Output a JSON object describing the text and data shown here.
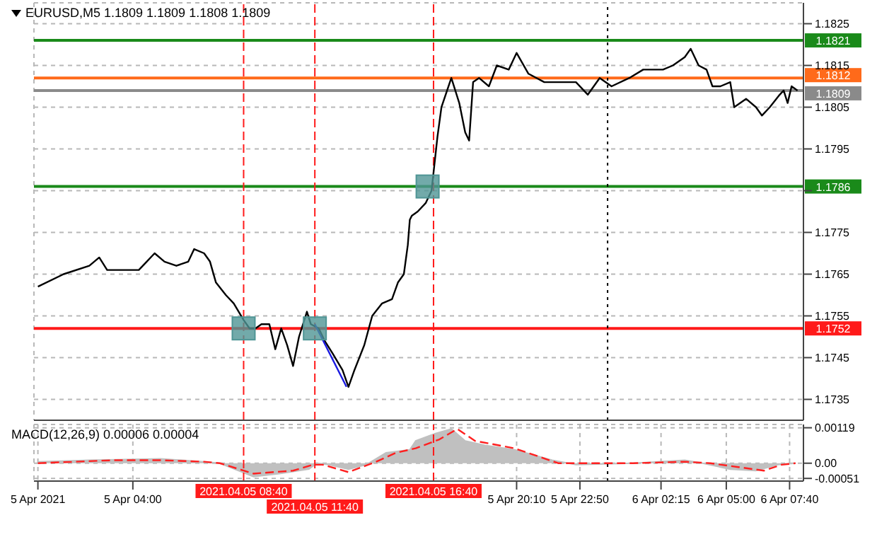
{
  "chart_data": [
    {
      "type": "line",
      "title": "EURUSD,M5  1.1809 1.1809 1.1808 1.1809",
      "xlim": [
        "2021-04-04T23:50",
        "2021-04-06T08:15"
      ],
      "ylim": [
        1.173,
        1.183
      ],
      "yticks": [
        1.1735,
        1.1745,
        1.1755,
        1.1765,
        1.1775,
        {
          "value": 1.1785,
          "label": null
        },
        1.1795,
        1.1805,
        1.1815,
        1.1825
      ],
      "xticks": [
        {
          "value": "2021-04-05T00:00",
          "label": null
        },
        {
          "value": "2021-04-05T04:00",
          "label": null
        },
        {
          "value": "2021-04-05T20:10",
          "label": null
        },
        {
          "value": "2021-04-05T22:50",
          "label": null
        },
        {
          "value": "2021-04-06T02:15",
          "label": null
        },
        {
          "value": "2021-04-06T05:00",
          "label": null
        },
        {
          "value": "2021-04-06T07:40",
          "label": null
        }
      ],
      "tick_labels": "y",
      "grid": true,
      "series": [
        {
          "color": "#000000",
          "x": [
            "2021-04-05T00:00",
            "2021-04-05T01:05",
            "2021-04-05T02:10",
            "2021-04-05T02:35",
            "2021-04-05T02:55",
            "2021-04-05T03:35",
            "2021-04-05T04:15",
            "2021-04-05T04:35",
            "2021-04-05T04:55",
            "2021-04-05T05:20",
            "2021-04-05T05:50",
            "2021-04-05T06:20",
            "2021-04-05T06:35",
            "2021-04-05T07:00",
            "2021-04-05T07:15",
            "2021-04-05T07:30",
            "2021-04-05T07:55",
            "2021-04-05T08:15",
            "2021-04-05T08:40",
            "2021-04-05T08:55",
            "2021-04-05T09:10",
            "2021-04-05T09:25",
            "2021-04-05T09:45",
            "2021-04-05T10:00",
            "2021-04-05T10:15",
            "2021-04-05T10:30",
            "2021-04-05T10:45",
            "2021-04-05T11:00",
            "2021-04-05T11:20",
            "2021-04-05T11:30",
            "2021-04-05T11:50",
            "2021-04-05T12:05",
            "2021-04-05T12:25",
            "2021-04-05T12:50",
            "2021-04-05T13:05",
            "2021-04-05T13:20",
            "2021-04-05T13:45",
            "2021-04-05T14:05",
            "2021-04-05T14:30",
            "2021-04-05T14:55",
            "2021-04-05T15:10",
            "2021-04-05T15:25",
            "2021-04-05T15:35",
            "2021-04-05T15:40",
            "2021-04-05T15:45",
            "2021-04-05T16:00",
            "2021-04-05T16:20",
            "2021-04-05T16:35",
            "2021-04-05T16:50",
            "2021-04-05T17:00",
            "2021-04-05T17:25",
            "2021-04-05T17:45",
            "2021-04-05T18:00",
            "2021-04-05T18:10",
            "2021-04-05T18:20",
            "2021-04-05T18:35",
            "2021-04-05T19:00",
            "2021-04-05T19:20",
            "2021-04-05T19:50",
            "2021-04-05T20:10",
            "2021-04-05T20:40",
            "2021-04-05T21:20",
            "2021-04-05T22:00",
            "2021-04-05T22:40",
            "2021-04-05T23:10",
            "2021-04-05T23:40",
            "2021-04-06T00:10",
            "2021-04-06T00:55",
            "2021-04-06T01:30",
            "2021-04-06T02:20",
            "2021-04-06T02:45",
            "2021-04-06T03:15",
            "2021-04-06T03:30",
            "2021-04-06T03:50",
            "2021-04-06T04:10",
            "2021-04-06T04:25",
            "2021-04-06T04:45",
            "2021-04-06T05:10",
            "2021-04-06T05:20",
            "2021-04-06T05:50",
            "2021-04-06T06:15",
            "2021-04-06T06:30",
            "2021-04-06T06:50",
            "2021-04-06T07:15",
            "2021-04-06T07:25",
            "2021-04-06T07:35",
            "2021-04-06T07:45",
            "2021-04-06T08:00"
          ],
          "values": [
            1.1762,
            1.1765,
            1.1767,
            1.1769,
            1.1766,
            1.1766,
            1.1766,
            1.1768,
            1.177,
            1.1768,
            1.1767,
            1.1768,
            1.1771,
            1.177,
            1.1768,
            1.1763,
            1.176,
            1.1758,
            1.1754,
            1.1752,
            1.1752,
            1.1753,
            1.1753,
            1.1747,
            1.1752,
            1.1748,
            1.1743,
            1.175,
            1.1756,
            1.1753,
            1.1752,
            1.1749,
            1.1746,
            1.1742,
            1.1738,
            1.1742,
            1.1748,
            1.1755,
            1.1758,
            1.1759,
            1.1763,
            1.1765,
            1.1772,
            1.1778,
            1.1779,
            1.178,
            1.1782,
            1.1785,
            1.1798,
            1.1805,
            1.1812,
            1.1806,
            1.1799,
            1.1797,
            1.1811,
            1.1812,
            1.181,
            1.1815,
            1.1814,
            1.1818,
            1.1813,
            1.1811,
            1.1811,
            1.1811,
            1.1808,
            1.1812,
            1.181,
            1.1812,
            1.1814,
            1.1814,
            1.1815,
            1.1817,
            1.1819,
            1.1815,
            1.1814,
            1.181,
            1.181,
            1.1811,
            1.1805,
            1.1807,
            1.1805,
            1.1803,
            1.1805,
            1.1808,
            1.1809,
            1.1806,
            1.181,
            1.1809
          ]
        },
        {
          "type": "line",
          "color": "#1a1ae0",
          "x": [
            "2021-04-05T11:40",
            "2021-04-05T13:00"
          ],
          "values": [
            1.1753,
            1.1738
          ]
        },
        {
          "type": "scatter",
          "marker": "square",
          "color": "#4f9595",
          "x": [
            "2021-04-05T08:40",
            "2021-04-05T11:40",
            "2021-04-05T16:25"
          ],
          "values": [
            1.1752,
            1.1752,
            1.1786
          ]
        }
      ],
      "ref_lines": [
        {
          "axis": "y",
          "value": 1.1821,
          "label": "1.1821",
          "color": "#1a8a1a"
        },
        {
          "axis": "y",
          "value": 1.1786,
          "label": "1.1786",
          "color": "#1a8a1a"
        },
        {
          "axis": "y",
          "value": 1.1752,
          "label": "1.1752",
          "color": "#ff1a1a"
        },
        {
          "axis": "y",
          "value": 1.1812,
          "label": "1.1812",
          "color": "#ff6a1a"
        },
        {
          "axis": "y",
          "value": 1.1809,
          "label": "1.1809",
          "color": "#8a8a8a"
        },
        {
          "axis": "x",
          "value": "2021-04-05T08:40",
          "color": "#ff1a1a",
          "line_style": "dashed"
        },
        {
          "axis": "x",
          "value": "2021-04-05T11:40",
          "color": "#ff1a1a",
          "line_style": "dashed"
        },
        {
          "axis": "x",
          "value": "2021-04-05T16:40",
          "color": "#ff1a1a",
          "line_style": "dashed"
        },
        {
          "axis": "x",
          "value": "2021-04-06T00:00",
          "color": "#000000",
          "line_style": "dotted"
        }
      ]
    },
    {
      "type": "area",
      "title": "MACD(12,26,9) 0.00006 0.00004",
      "xlim": [
        "2021-04-04T23:50",
        "2021-04-06T08:15"
      ],
      "ylim": [
        -0.0006,
        0.0013
      ],
      "yticks": [
        {
          "value": 0.00119,
          "label": "0.00119"
        },
        {
          "value": 0,
          "label": "0.00"
        },
        {
          "value": -0.00051,
          "label": "-0.00051"
        }
      ],
      "xticks": [
        {
          "value": "2021-04-05T00:00",
          "label": "5 Apr 2021"
        },
        {
          "value": "2021-04-05T04:00",
          "label": "5 Apr 04:00"
        },
        {
          "value": "2021-04-05T20:10",
          "label": "5 Apr 20:10"
        },
        {
          "value": "2021-04-05T22:50",
          "label": "5 Apr 22:50"
        },
        {
          "value": "2021-04-06T02:15",
          "label": "6 Apr 02:15"
        },
        {
          "value": "2021-04-06T05:00",
          "label": "6 Apr 05:00"
        },
        {
          "value": "2021-04-06T07:40",
          "label": "6 Apr 07:40"
        }
      ],
      "grid": true,
      "series": [
        {
          "color": "#c0c0c0",
          "x": [
            "2021-04-05T00:00",
            "2021-04-05T02:10",
            "2021-04-05T05:10",
            "2021-04-05T07:00",
            "2021-04-05T07:40",
            "2021-04-05T09:05",
            "2021-04-05T10:10",
            "2021-04-05T11:25",
            "2021-04-05T11:45",
            "2021-04-05T12:15",
            "2021-04-05T13:05",
            "2021-04-05T13:50",
            "2021-04-05T14:40",
            "2021-04-05T15:40",
            "2021-04-05T15:55",
            "2021-04-05T16:45",
            "2021-04-05T17:25",
            "2021-04-05T18:00",
            "2021-04-05T18:50",
            "2021-04-05T20:05",
            "2021-04-05T21:40",
            "2021-04-05T22:40",
            "2021-04-06T01:05",
            "2021-04-06T03:15",
            "2021-04-06T04:00",
            "2021-04-06T05:10",
            "2021-04-06T06:15",
            "2021-04-06T07:10",
            "2021-04-06T07:55"
          ],
          "values": [
            5e-05,
            0.0001,
            0.00015,
            5e-05,
            0,
            -0.00045,
            -0.00035,
            -0.0002,
            0,
            -5e-05,
            -0.0002,
            -5e-05,
            0.00035,
            0.00045,
            0.00075,
            0.001,
            0.00115,
            0.00075,
            0.0006,
            0.00045,
            0.0001,
            -5e-05,
            0,
            0.0001,
            0,
            -0.0002,
            -0.00025,
            -5e-05,
            0
          ]
        },
        {
          "type": "line",
          "line_style": "dashed",
          "color": "#ff2020",
          "x": [
            "2021-04-05T00:00",
            "2021-04-05T03:10",
            "2021-04-05T05:10",
            "2021-04-05T07:00",
            "2021-04-05T07:40",
            "2021-04-05T09:05",
            "2021-04-05T10:45",
            "2021-04-05T11:35",
            "2021-04-05T12:00",
            "2021-04-05T13:05",
            "2021-04-05T14:15",
            "2021-04-05T15:05",
            "2021-04-05T15:55",
            "2021-04-05T16:55",
            "2021-04-05T17:40",
            "2021-04-05T18:25",
            "2021-04-05T20:05",
            "2021-04-05T21:55",
            "2021-04-06T01:05",
            "2021-04-06T03:15",
            "2021-04-06T04:20",
            "2021-04-06T06:35",
            "2021-04-06T07:20",
            "2021-04-06T07:55"
          ],
          "values": [
            0,
            0.0001,
            0.0001,
            5e-05,
            0,
            -0.00035,
            -0.00025,
            -5e-05,
            -5e-05,
            -0.0003,
            5e-05,
            0.00035,
            0.0005,
            0.0008,
            0.00115,
            0.00075,
            0.0005,
            0,
            0,
            5e-05,
            0,
            -0.00025,
            -5e-05,
            0
          ]
        }
      ],
      "ref_lines": [
        {
          "axis": "x",
          "value": "2021-04-05T08:40",
          "label": "2021.04.05 08:40",
          "color": "#ff1a1a",
          "line_style": "dashed"
        },
        {
          "axis": "x",
          "value": "2021-04-05T11:40",
          "label": "2021.04.05 11:40",
          "color": "#ff1a1a",
          "line_style": "dashed"
        },
        {
          "axis": "x",
          "value": "2021-04-05T16:40",
          "label": "2021.04.05 16:40",
          "color": "#ff1a1a",
          "line_style": "dashed"
        },
        {
          "axis": "x",
          "value": "2021-04-06T00:00",
          "color": "#000000",
          "line_style": "dotted"
        }
      ]
    }
  ]
}
